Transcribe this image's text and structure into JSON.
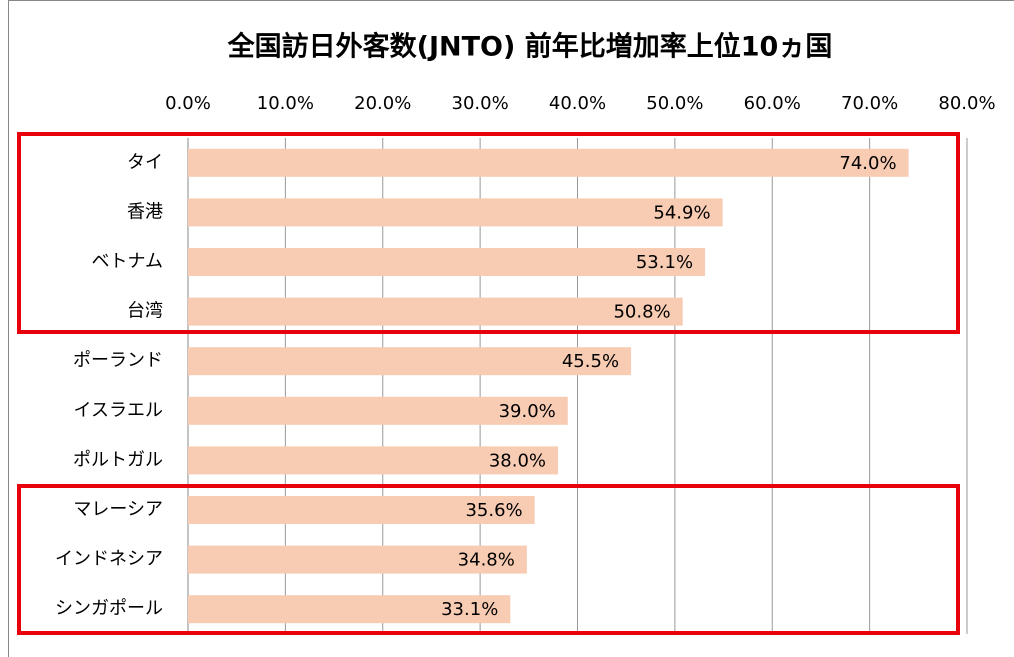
{
  "chart_data": {
    "type": "hbar",
    "title": "全国訪日外客数(JNTO) 前年比増加率上位10ヵ国",
    "categories": [
      "タイ",
      "香港",
      "ベトナム",
      "台湾",
      "ポーランド",
      "イスラエル",
      "ポルトガル",
      "マレーシア",
      "インドネシア",
      "シンガポール"
    ],
    "values": [
      74.0,
      54.9,
      53.1,
      50.8,
      45.5,
      39.0,
      38.0,
      35.6,
      34.8,
      33.1
    ],
    "value_labels": [
      "74.0%",
      "54.9%",
      "53.1%",
      "50.8%",
      "45.5%",
      "39.0%",
      "38.0%",
      "35.6%",
      "34.8%",
      "33.1%"
    ],
    "color": "#f8cbb3",
    "xlim": [
      0,
      80
    ],
    "xticks": [
      {
        "value": 0,
        "label": "0.0%"
      },
      {
        "value": 10,
        "label": "10.0%"
      },
      {
        "value": 20,
        "label": "20.0%"
      },
      {
        "value": 30,
        "label": "30.0%"
      },
      {
        "value": 40,
        "label": "40.0%"
      },
      {
        "value": 50,
        "label": "50.0%"
      },
      {
        "value": 60,
        "label": "60.0%"
      },
      {
        "value": 70,
        "label": "70.0%"
      },
      {
        "value": 80,
        "label": "80.0%"
      }
    ],
    "grid": true
  }
}
